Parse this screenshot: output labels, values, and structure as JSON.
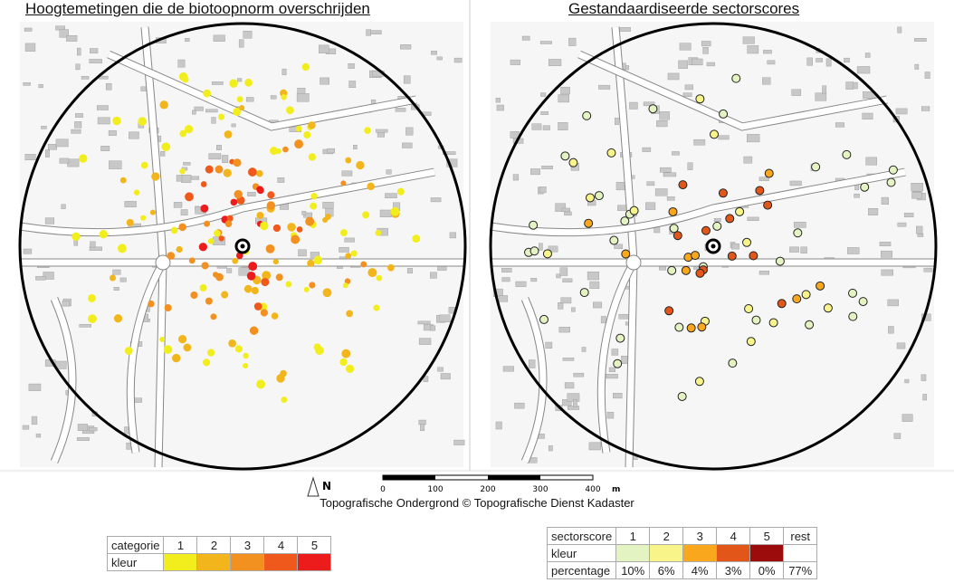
{
  "panels": [
    {
      "title": "Hoogtemetingen die de biotoopnorm overschrijden"
    },
    {
      "title": "Gestandaardiseerde sectorscores"
    }
  ],
  "north": "N",
  "scale_bar": {
    "labels": [
      "0",
      "100",
      "200",
      "300",
      "400"
    ],
    "unit": "m"
  },
  "attribution": "Topografische Ondergrond © Topografische Dienst Kadaster",
  "legend_left": {
    "header": [
      "categorie",
      "1",
      "2",
      "3",
      "4",
      "5"
    ],
    "color_label": "kleur",
    "colors": [
      "#f2ee1e",
      "#f2b51c",
      "#f29020",
      "#ef5a1c",
      "#ec1c1c"
    ]
  },
  "legend_right": {
    "header": [
      "sectorscore",
      "1",
      "2",
      "3",
      "4",
      "5",
      "rest"
    ],
    "color_label": "kleur",
    "colors": [
      "#e4f3c2",
      "#f8f48a",
      "#f9a81e",
      "#e2561a",
      "#9c0c0c",
      "#ffffff"
    ],
    "percentage_label": "percentage",
    "percentages": [
      "10%",
      "6%",
      "4%",
      "3%",
      "0%",
      "77%"
    ]
  }
}
